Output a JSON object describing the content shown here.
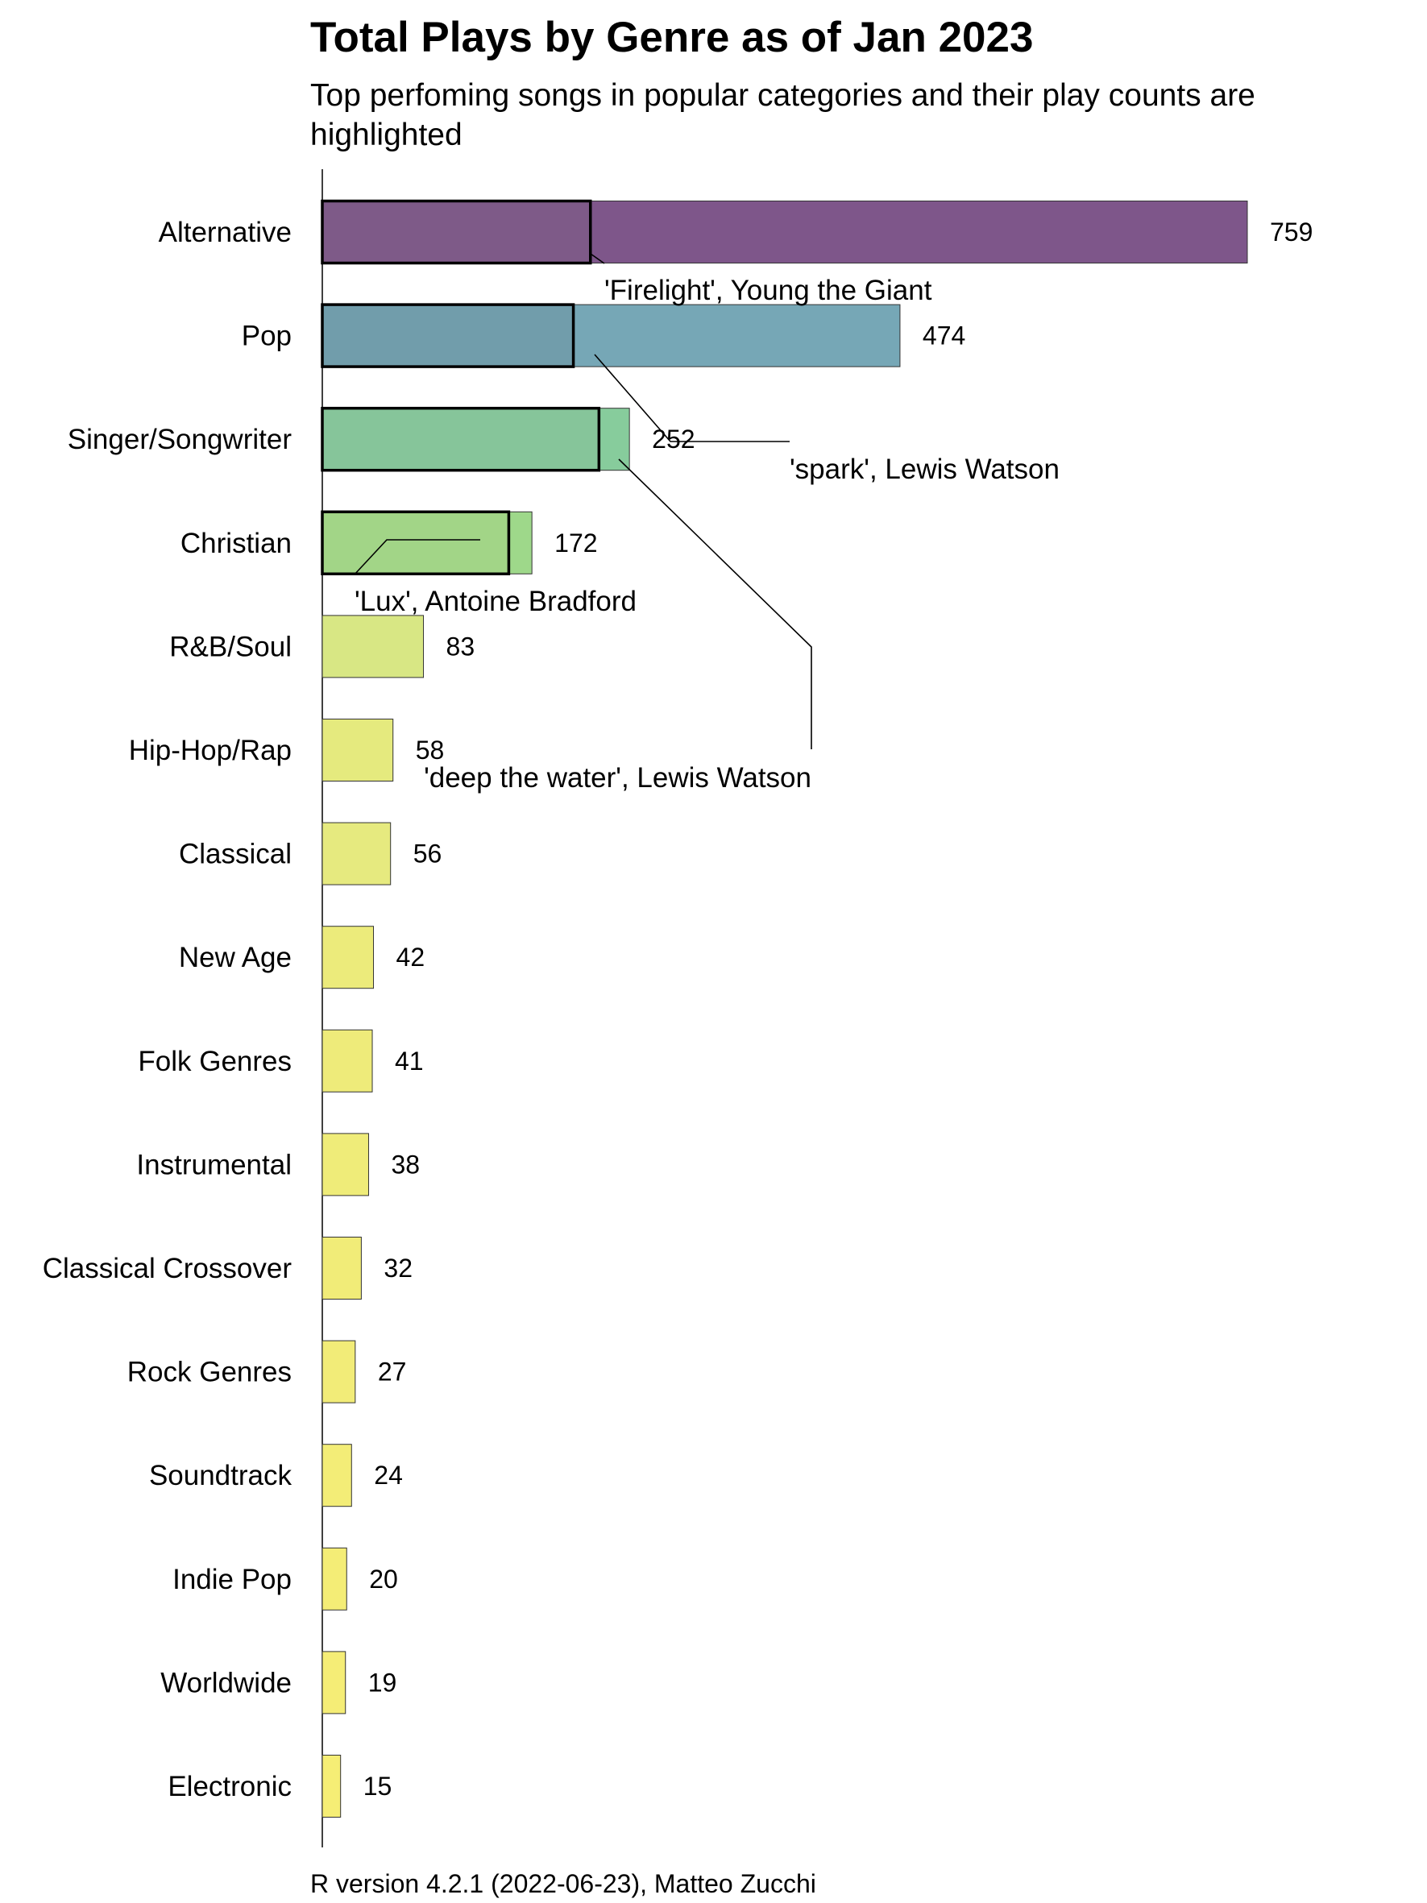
{
  "chart_data": {
    "type": "bar",
    "orientation": "horizontal",
    "title": "Total Plays by Genre as of Jan 2023",
    "subtitle_lines": [
      "Top perfoming songs in popular categories and their play counts are",
      "highlighted"
    ],
    "caption": "R version 4.2.1 (2022-06-23), Matteo Zucchi",
    "xlim": [
      0,
      759
    ],
    "grid": false,
    "categories": [
      "Alternative",
      "Pop",
      "Singer/Songwriter",
      "Christian",
      "R&B/Soul",
      "Hip-Hop/Rap",
      "Classical",
      "New Age",
      "Folk Genres",
      "Instrumental",
      "Classical Crossover",
      "Rock Genres",
      "Soundtrack",
      "Indie Pop",
      "Worldwide",
      "Electronic"
    ],
    "values": [
      759,
      474,
      252,
      172,
      83,
      58,
      56,
      42,
      41,
      38,
      32,
      27,
      24,
      20,
      19,
      15
    ],
    "value_labels": [
      "759",
      "474",
      "252",
      "172",
      "83",
      "58",
      "56",
      "42",
      "41",
      "38",
      "32",
      "27",
      "24",
      "20",
      "19",
      "15"
    ],
    "colors": [
      "#7e568a",
      "#76a7b6",
      "#87cc9c",
      "#9ed88a",
      "#d8e784",
      "#e5ea7e",
      "#e6ea7f",
      "#eceb7b",
      "#eeeb7a",
      "#efec79",
      "#f1ec78",
      "#f2ec78",
      "#f3ed77",
      "#f4ed76",
      "#f5ed76",
      "#f6ee75"
    ],
    "highlights": [
      {
        "category": "Alternative",
        "value": 220,
        "label": "'Firelight', Young the Giant",
        "fill": "#7e5a88"
      },
      {
        "category": "Pop",
        "value": 206,
        "label": "'spark', Lewis Watson",
        "fill": "#719dab"
      },
      {
        "category": "Singer/Songwriter",
        "value": 227,
        "label": "'deep the water', Lewis Watson",
        "fill": "#86c59a"
      },
      {
        "category": "Christian",
        "value": 153,
        "label": "'Lux', Antoine Bradford",
        "fill": "#a2d587"
      }
    ]
  }
}
